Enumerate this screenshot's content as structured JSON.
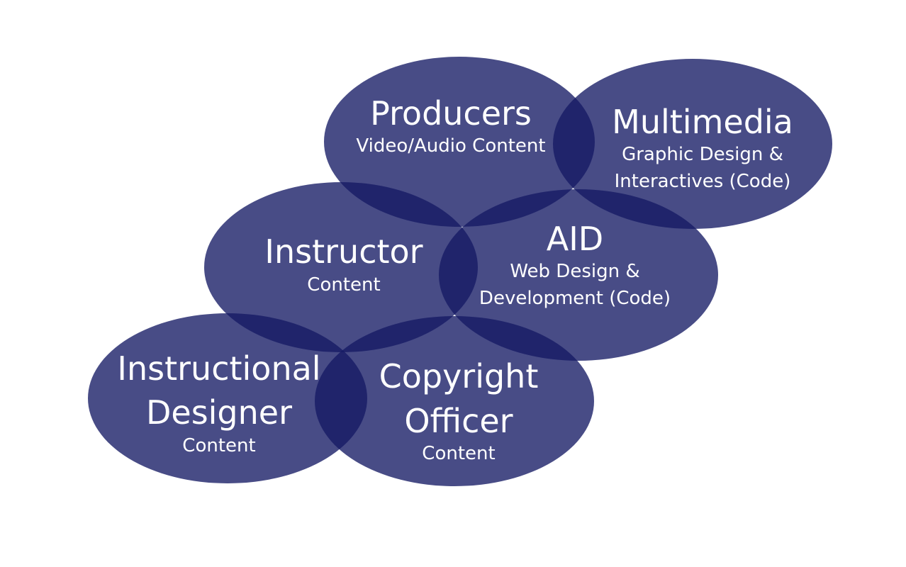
{
  "colors": {
    "background": "#ffffff",
    "ellipse": "#141a64",
    "text": "#ffffff"
  },
  "nodes": [
    {
      "id": "producers",
      "title": [
        "Producers"
      ],
      "subtitle": [
        "Video/Audio Content"
      ]
    },
    {
      "id": "multimedia",
      "title": [
        "Multimedia"
      ],
      "subtitle": [
        "Graphic Design &",
        "Interactives (Code)"
      ]
    },
    {
      "id": "instructor",
      "title": [
        "Instructor"
      ],
      "subtitle": [
        "Content"
      ]
    },
    {
      "id": "aid",
      "title": [
        "AID"
      ],
      "subtitle": [
        "Web Design &",
        "Development (Code)"
      ]
    },
    {
      "id": "instructional-designer",
      "title": [
        "Instructional",
        "Designer"
      ],
      "subtitle": [
        "Content"
      ]
    },
    {
      "id": "copyright-officer",
      "title": [
        "Copyright",
        "Officer"
      ],
      "subtitle": [
        "Content"
      ]
    }
  ]
}
